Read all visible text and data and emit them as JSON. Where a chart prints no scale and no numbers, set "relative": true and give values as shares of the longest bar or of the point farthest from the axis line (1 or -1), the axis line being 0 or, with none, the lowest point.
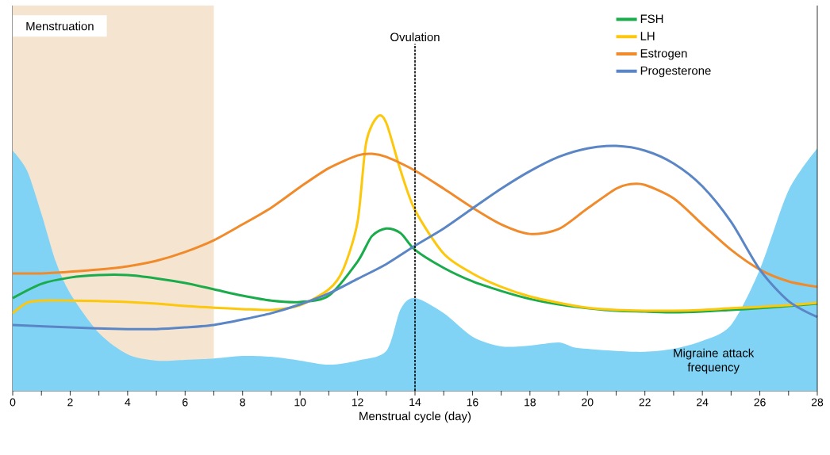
{
  "chart_data": {
    "type": "line",
    "relative": true,
    "xlabel": "Menstrual cycle (day)",
    "xlim": [
      0,
      28
    ],
    "xticks": [
      0,
      {
        "value": 1,
        "label": null
      },
      2,
      {
        "value": 3,
        "label": null
      },
      4,
      {
        "value": 5,
        "label": null
      },
      6,
      {
        "value": 7,
        "label": null
      },
      8,
      {
        "value": 9,
        "label": null
      },
      10,
      {
        "value": 11,
        "label": null
      },
      12,
      {
        "value": 13,
        "label": null
      },
      14,
      {
        "value": 15,
        "label": null
      },
      16,
      {
        "value": 17,
        "label": null
      },
      18,
      {
        "value": 19,
        "label": null
      },
      20,
      {
        "value": 21,
        "label": null
      },
      22,
      {
        "value": 23,
        "label": null
      },
      24,
      {
        "value": 25,
        "label": null
      },
      26,
      {
        "value": 27,
        "label": null
      },
      28
    ],
    "tick_labels": "x",
    "legend": "top right",
    "line_style": "solid",
    "marker": "none",
    "bands": [
      {
        "axis": "x",
        "from": 0,
        "to": 7,
        "label": "Menstruation",
        "color": "#f5e4d0"
      }
    ],
    "ref_lines": [
      {
        "axis": "x",
        "value": 14,
        "label": "Ovulation",
        "color": "#000000",
        "line_style": "dashed"
      }
    ],
    "series": [
      {
        "name": "Migraine attack frequency",
        "type": "area",
        "color": "#81d3f5",
        "x": [
          0,
          0.5,
          1,
          1.5,
          2,
          3,
          4,
          5,
          6,
          7,
          8,
          9,
          10,
          11,
          12,
          13,
          13.5,
          14,
          15,
          16,
          17,
          18,
          19,
          19.5,
          20,
          21,
          22,
          23,
          24,
          25,
          26,
          27,
          28
        ],
        "values": [
          0.876,
          0.803,
          0.645,
          0.471,
          0.355,
          0.211,
          0.133,
          0.11,
          0.113,
          0.118,
          0.127,
          0.124,
          0.11,
          0.095,
          0.11,
          0.145,
          0.298,
          0.338,
          0.283,
          0.197,
          0.162,
          0.165,
          0.176,
          0.159,
          0.153,
          0.145,
          0.142,
          0.153,
          0.182,
          0.24,
          0.442,
          0.731,
          0.884
        ]
      },
      {
        "name": "FSH",
        "color": "#1aab4b",
        "x": [
          0,
          1,
          2,
          3,
          4,
          5,
          6,
          7,
          8,
          9,
          10,
          11,
          12,
          12.5,
          13,
          13.5,
          14,
          15,
          16,
          17,
          18,
          19,
          20,
          21,
          22,
          23,
          24,
          25,
          26,
          27,
          28
        ],
        "values": [
          0.338,
          0.39,
          0.413,
          0.422,
          0.422,
          0.41,
          0.393,
          0.37,
          0.347,
          0.329,
          0.324,
          0.347,
          0.471,
          0.564,
          0.592,
          0.575,
          0.514,
          0.448,
          0.399,
          0.364,
          0.335,
          0.315,
          0.301,
          0.292,
          0.289,
          0.286,
          0.289,
          0.295,
          0.301,
          0.309,
          0.318
        ]
      },
      {
        "name": "LH",
        "color": "#fdc70c",
        "x": [
          0,
          0.5,
          1,
          2,
          3,
          4,
          5,
          6,
          7,
          8,
          9,
          10,
          11,
          11.5,
          12,
          12.3,
          12.7,
          13,
          13.5,
          14,
          15,
          16,
          17,
          18,
          19,
          20,
          21,
          22,
          23,
          24,
          25,
          26,
          27,
          28
        ],
        "values": [
          0.283,
          0.321,
          0.329,
          0.329,
          0.327,
          0.324,
          0.318,
          0.309,
          0.303,
          0.298,
          0.295,
          0.312,
          0.37,
          0.442,
          0.616,
          0.905,
          1,
          0.977,
          0.803,
          0.659,
          0.5,
          0.428,
          0.379,
          0.344,
          0.321,
          0.303,
          0.295,
          0.292,
          0.292,
          0.295,
          0.301,
          0.306,
          0.312,
          0.321
        ]
      },
      {
        "name": "Estrogen",
        "color": "#f08a2a",
        "x": [
          0,
          1,
          2,
          3,
          4,
          5,
          6,
          7,
          8,
          9,
          10,
          11,
          12,
          12.5,
          13,
          14,
          15,
          16,
          17,
          18,
          19,
          20,
          21,
          21.5,
          22,
          23,
          24,
          25,
          26,
          27,
          28
        ],
        "values": [
          0.428,
          0.428,
          0.434,
          0.442,
          0.454,
          0.474,
          0.506,
          0.549,
          0.607,
          0.668,
          0.743,
          0.812,
          0.858,
          0.864,
          0.853,
          0.803,
          0.737,
          0.668,
          0.607,
          0.572,
          0.59,
          0.665,
          0.737,
          0.754,
          0.751,
          0.702,
          0.607,
          0.514,
          0.442,
          0.399,
          0.379
        ]
      },
      {
        "name": "Progesterone",
        "color": "#5b86c6",
        "x": [
          0,
          2,
          4,
          5,
          6,
          7,
          8,
          9,
          10,
          11,
          12,
          13,
          14,
          15,
          16,
          17,
          18,
          19,
          20,
          21,
          22,
          23,
          24,
          25,
          26,
          27,
          28
        ],
        "values": [
          0.24,
          0.231,
          0.225,
          0.225,
          0.231,
          0.24,
          0.26,
          0.283,
          0.315,
          0.355,
          0.408,
          0.462,
          0.529,
          0.592,
          0.665,
          0.737,
          0.801,
          0.853,
          0.884,
          0.893,
          0.876,
          0.829,
          0.746,
          0.616,
          0.442,
          0.327,
          0.269
        ]
      }
    ]
  }
}
